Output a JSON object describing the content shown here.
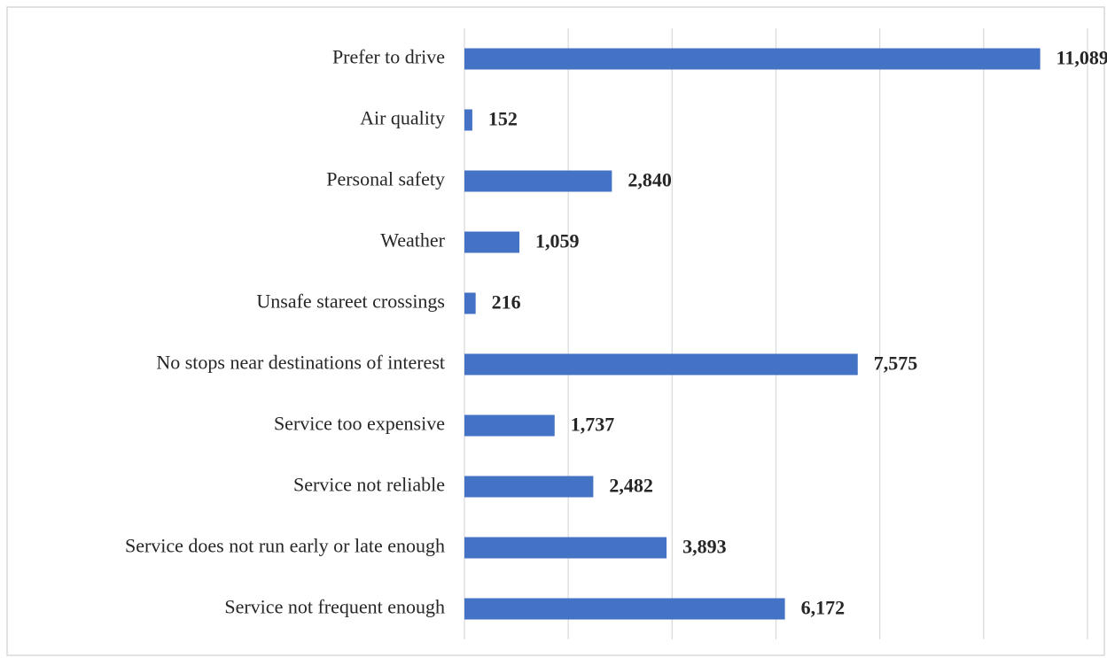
{
  "chart_data": {
    "type": "hbar",
    "categories": [
      "Prefer to drive",
      "Air quality",
      "Personal safety",
      "Weather",
      "Unsafe stareet crossings",
      "No stops near destinations of interest",
      "Service too expensive",
      "Service not reliable",
      "Service does not run early or late enough",
      "Service not frequent enough"
    ],
    "values": [
      11089,
      152,
      2840,
      1059,
      216,
      7575,
      1737,
      2482,
      3893,
      6172
    ],
    "value_labels": [
      "11,089",
      "152",
      "2,840",
      "1,059",
      "216",
      "7,575",
      "1,737",
      "2,482",
      "3,893",
      "6,172"
    ],
    "color": "#4472c4",
    "xlim": [
      0,
      12000
    ],
    "xticks": [
      0,
      2000,
      4000,
      6000,
      8000,
      10000,
      12000
    ],
    "grid": true
  }
}
